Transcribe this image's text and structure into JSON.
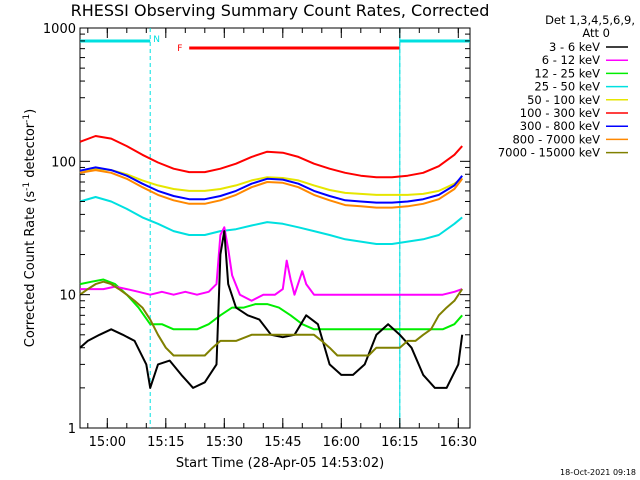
{
  "chart_data": {
    "type": "line",
    "title": "RHESSI Observing Summary Count Rates, Corrected",
    "xlabel": "Start Time (28-Apr-05 14:53:02)",
    "ylabel_main": "Corrected Count Rate (s",
    "ylabel_sup1": "-1",
    "ylabel_mid": " detector",
    "ylabel_sup2": "-1",
    "ylabel_end": ")",
    "yscale": "log",
    "ylim": [
      1,
      1000
    ],
    "xlim_minutes": [
      0,
      100
    ],
    "x_ticks": [
      {
        "label": "15:00",
        "minute": 7
      },
      {
        "label": "15:15",
        "minute": 22
      },
      {
        "label": "15:30",
        "minute": 37
      },
      {
        "label": "15:45",
        "minute": 52
      },
      {
        "label": "16:00",
        "minute": 67
      },
      {
        "label": "16:15",
        "minute": 82
      },
      {
        "label": "16:30",
        "minute": 97
      }
    ],
    "y_ticks": [
      {
        "label": "1",
        "value": 1
      },
      {
        "label": "10",
        "value": 10
      },
      {
        "label": "100",
        "value": 100
      },
      {
        "label": "1000",
        "value": 1000
      }
    ],
    "legend_header": [
      "Det 1,3,4,5,6,9,",
      "Att 0"
    ],
    "grid": false,
    "legend_position": "right",
    "night_intervals": [
      {
        "start": 0,
        "end": 18,
        "label": "N",
        "color": "#00e0e0"
      },
      {
        "start": 82,
        "end": 100,
        "label": "",
        "color": "#00e0e0"
      }
    ],
    "flare_flag": {
      "start": 28,
      "end": 82,
      "label": "F",
      "color": "#ff0000"
    },
    "series": [
      {
        "name": "3 - 6 keV",
        "color": "#000000",
        "x": [
          0,
          2,
          5,
          8,
          11,
          14,
          17,
          18,
          20,
          23,
          26,
          29,
          32,
          35,
          36,
          37,
          38,
          40,
          43,
          46,
          49,
          52,
          55,
          58,
          61,
          64,
          67,
          70,
          73,
          76,
          79,
          82,
          85,
          88,
          91,
          94,
          97,
          98
        ],
        "y": [
          4,
          4.5,
          5,
          5.5,
          5,
          4.5,
          3,
          2,
          3,
          3.2,
          2.5,
          2,
          2.2,
          3,
          20,
          30,
          12,
          8,
          7,
          6.5,
          5,
          4.8,
          5,
          7,
          6,
          3,
          2.5,
          2.5,
          3,
          5,
          6,
          5,
          4,
          2.5,
          2,
          2,
          3,
          5
        ]
      },
      {
        "name": "6 - 12 keV",
        "color": "#ff00ff",
        "x": [
          0,
          3,
          6,
          9,
          12,
          15,
          18,
          21,
          24,
          27,
          30,
          33,
          35,
          36,
          37,
          38,
          39,
          41,
          44,
          47,
          50,
          52,
          53,
          54,
          55,
          57,
          58,
          60,
          63,
          66,
          69,
          72,
          75,
          78,
          81,
          84,
          87,
          90,
          93,
          96,
          98
        ],
        "y": [
          11,
          11,
          11,
          11.5,
          11,
          10.5,
          10,
          10.5,
          10,
          10.5,
          10,
          10.5,
          12,
          28,
          32,
          22,
          14,
          10,
          9,
          10,
          10,
          11,
          18,
          13,
          10,
          15,
          12,
          10,
          10,
          10,
          10,
          10,
          10,
          10,
          10,
          10,
          10,
          10,
          10,
          10.5,
          11
        ]
      },
      {
        "name": "12 - 25 keV",
        "color": "#00ee00",
        "x": [
          0,
          3,
          6,
          9,
          12,
          15,
          18,
          21,
          24,
          27,
          30,
          33,
          36,
          39,
          42,
          45,
          48,
          51,
          54,
          57,
          60,
          63,
          66,
          69,
          72,
          75,
          78,
          81,
          84,
          87,
          90,
          93,
          96,
          98
        ],
        "y": [
          12,
          12.5,
          13,
          12,
          10,
          8,
          6,
          6,
          5.5,
          5.5,
          5.5,
          6,
          7,
          8,
          8,
          8.5,
          8.5,
          8,
          7,
          6,
          5.5,
          5.5,
          5.5,
          5.5,
          5.5,
          5.5,
          5.5,
          5.5,
          5.5,
          5.5,
          5.5,
          5.5,
          6,
          7
        ]
      },
      {
        "name": "25 - 50 keV",
        "color": "#00e0e0",
        "x": [
          0,
          4,
          8,
          12,
          16,
          20,
          24,
          28,
          32,
          36,
          40,
          44,
          48,
          52,
          56,
          60,
          64,
          68,
          72,
          76,
          80,
          84,
          88,
          92,
          96,
          98
        ],
        "y": [
          50,
          54,
          50,
          44,
          38,
          34,
          30,
          28,
          28,
          30,
          31,
          33,
          35,
          34,
          32,
          30,
          28,
          26,
          25,
          24,
          24,
          25,
          26,
          28,
          34,
          38
        ]
      },
      {
        "name": "50 - 100 keV",
        "color": "#e6e600",
        "x": [
          0,
          4,
          8,
          12,
          16,
          20,
          24,
          28,
          32,
          36,
          40,
          44,
          48,
          52,
          56,
          60,
          64,
          68,
          72,
          76,
          80,
          84,
          88,
          92,
          96,
          98
        ],
        "y": [
          82,
          88,
          86,
          80,
          72,
          66,
          62,
          60,
          60,
          62,
          66,
          72,
          76,
          75,
          72,
          66,
          61,
          58,
          57,
          56,
          56,
          56,
          57,
          60,
          68,
          75
        ]
      },
      {
        "name": "100 - 300 keV",
        "color": "#ff0000",
        "x": [
          0,
          4,
          8,
          12,
          16,
          20,
          24,
          28,
          32,
          36,
          40,
          44,
          48,
          52,
          56,
          60,
          64,
          68,
          72,
          76,
          80,
          84,
          88,
          92,
          96,
          98
        ],
        "y": [
          140,
          155,
          148,
          130,
          112,
          98,
          88,
          83,
          83,
          88,
          96,
          108,
          118,
          116,
          108,
          96,
          88,
          82,
          78,
          76,
          76,
          78,
          82,
          92,
          112,
          130
        ]
      },
      {
        "name": "300 - 800 keV",
        "color": "#0000ff",
        "x": [
          0,
          4,
          8,
          12,
          16,
          20,
          24,
          28,
          32,
          36,
          40,
          44,
          48,
          52,
          56,
          60,
          64,
          68,
          72,
          76,
          80,
          84,
          88,
          92,
          96,
          98
        ],
        "y": [
          85,
          90,
          86,
          78,
          68,
          60,
          55,
          52,
          52,
          55,
          60,
          68,
          74,
          73,
          68,
          60,
          55,
          51,
          50,
          49,
          49,
          50,
          52,
          56,
          66,
          78
        ]
      },
      {
        "name": "800 - 7000 keV",
        "color": "#ff8800",
        "x": [
          0,
          4,
          8,
          12,
          16,
          20,
          24,
          28,
          32,
          36,
          40,
          44,
          48,
          52,
          56,
          60,
          64,
          68,
          72,
          76,
          80,
          84,
          88,
          92,
          96,
          98
        ],
        "y": [
          82,
          86,
          82,
          74,
          64,
          56,
          51,
          48,
          48,
          51,
          56,
          64,
          70,
          69,
          64,
          56,
          51,
          47,
          46,
          45,
          45,
          46,
          48,
          52,
          62,
          74
        ]
      },
      {
        "name": "7000 - 15000 keV",
        "color": "#808000",
        "x": [
          0,
          2,
          4,
          6,
          8,
          10,
          12,
          14,
          16,
          18,
          20,
          22,
          24,
          26,
          28,
          30,
          32,
          34,
          36,
          38,
          40,
          44,
          48,
          52,
          56,
          60,
          62,
          64,
          66,
          68,
          70,
          72,
          74,
          76,
          78,
          80,
          82,
          84,
          86,
          88,
          90,
          92,
          94,
          96,
          98
        ],
        "y": [
          10,
          11,
          12,
          12.5,
          12,
          11,
          10,
          9,
          8,
          6.5,
          5,
          4,
          3.5,
          3.5,
          3.5,
          3.5,
          3.5,
          4,
          4.5,
          4.5,
          4.5,
          5,
          5,
          5,
          5,
          5,
          4.5,
          4,
          3.5,
          3.5,
          3.5,
          3.5,
          3.5,
          4,
          4,
          4,
          4,
          4.5,
          4.5,
          5,
          5.5,
          7,
          8,
          9,
          11
        ]
      }
    ]
  },
  "timestamp": "18-Oct-2021 09:18"
}
